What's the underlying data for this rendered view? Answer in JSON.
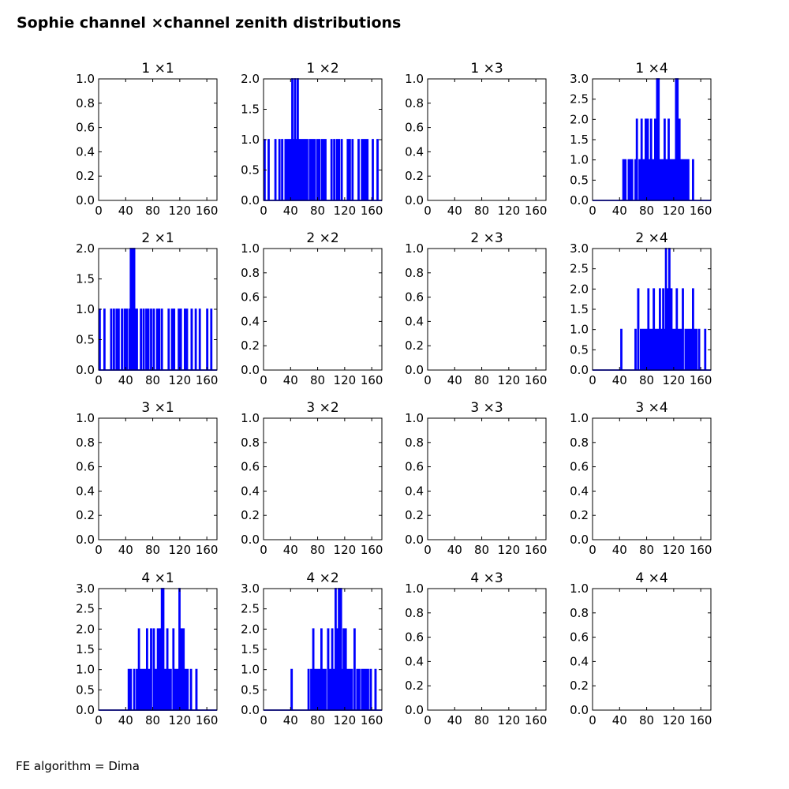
{
  "title": "Sophie channel ×channel zenith distributions",
  "footer": "FE algorithm = Dima",
  "chart_data": [
    {
      "type": "line",
      "title": "1 ×1",
      "x_ticks": [
        0,
        40,
        80,
        120,
        160
      ],
      "xlim": [
        0,
        175
      ],
      "ylim": [
        0,
        1.0
      ],
      "y_ticks": [
        "0.0",
        "0.2",
        "0.4",
        "0.6",
        "0.8",
        "1.0"
      ],
      "counts": []
    },
    {
      "type": "line",
      "title": "1 ×2",
      "x_ticks": [
        0,
        40,
        80,
        120,
        160
      ],
      "xlim": [
        0,
        175
      ],
      "ylim": [
        0,
        2.0
      ],
      "y_ticks": [
        "0.0",
        "0.5",
        "1.0",
        "1.5",
        "2.0"
      ],
      "counts": [
        [
          1,
          1
        ],
        [
          7,
          1
        ],
        [
          17,
          1
        ],
        [
          23,
          1
        ],
        [
          27,
          1
        ],
        [
          32,
          1
        ],
        [
          35,
          1
        ],
        [
          38,
          1
        ],
        [
          40,
          1
        ],
        [
          42,
          2
        ],
        [
          44,
          1
        ],
        [
          46,
          2
        ],
        [
          48,
          1
        ],
        [
          50,
          2
        ],
        [
          52,
          1
        ],
        [
          55,
          1
        ],
        [
          58,
          1
        ],
        [
          61,
          1
        ],
        [
          64,
          1
        ],
        [
          68,
          1
        ],
        [
          70,
          1
        ],
        [
          72,
          1
        ],
        [
          75,
          1
        ],
        [
          79,
          1
        ],
        [
          82,
          1
        ],
        [
          86,
          1
        ],
        [
          88,
          1
        ],
        [
          91,
          1
        ],
        [
          100,
          1
        ],
        [
          104,
          1
        ],
        [
          108,
          1
        ],
        [
          111,
          1
        ],
        [
          115,
          1
        ],
        [
          124,
          1
        ],
        [
          127,
          1
        ],
        [
          131,
          1
        ],
        [
          140,
          1
        ],
        [
          145,
          1
        ],
        [
          148,
          1
        ],
        [
          151,
          1
        ],
        [
          153,
          1
        ],
        [
          161,
          1
        ],
        [
          168,
          1
        ]
      ]
    },
    {
      "type": "line",
      "title": "1 ×3",
      "x_ticks": [
        0,
        40,
        80,
        120,
        160
      ],
      "xlim": [
        0,
        175
      ],
      "ylim": [
        0,
        1.0
      ],
      "y_ticks": [
        "0.0",
        "0.2",
        "0.4",
        "0.6",
        "0.8",
        "1.0"
      ],
      "counts": []
    },
    {
      "type": "line",
      "title": "1 ×4",
      "x_ticks": [
        0,
        40,
        80,
        120,
        160
      ],
      "xlim": [
        0,
        175
      ],
      "ylim": [
        0,
        3.0
      ],
      "y_ticks": [
        "0.0",
        "0.5",
        "1.0",
        "1.5",
        "2.0",
        "2.5",
        "3.0"
      ],
      "counts": [
        [
          45,
          1
        ],
        [
          48,
          1
        ],
        [
          53,
          1
        ],
        [
          55,
          1
        ],
        [
          58,
          1
        ],
        [
          63,
          1
        ],
        [
          65,
          2
        ],
        [
          69,
          1
        ],
        [
          72,
          2
        ],
        [
          75,
          1
        ],
        [
          78,
          2
        ],
        [
          81,
          2
        ],
        [
          83,
          1
        ],
        [
          86,
          2
        ],
        [
          89,
          1
        ],
        [
          92,
          2
        ],
        [
          94,
          1
        ],
        [
          95,
          3
        ],
        [
          97,
          3
        ],
        [
          100,
          1
        ],
        [
          103,
          1
        ],
        [
          106,
          2
        ],
        [
          109,
          1
        ],
        [
          112,
          2
        ],
        [
          114,
          1
        ],
        [
          117,
          1
        ],
        [
          120,
          1
        ],
        [
          123,
          3
        ],
        [
          125,
          3
        ],
        [
          128,
          2
        ],
        [
          131,
          1
        ],
        [
          134,
          1
        ],
        [
          136,
          1
        ],
        [
          139,
          1
        ],
        [
          141,
          1
        ],
        [
          148,
          1
        ]
      ]
    },
    {
      "type": "line",
      "title": "2 ×1",
      "x_ticks": [
        0,
        40,
        80,
        120,
        160
      ],
      "xlim": [
        0,
        175
      ],
      "ylim": [
        0,
        2.0
      ],
      "y_ticks": [
        "0.0",
        "0.5",
        "1.0",
        "1.5",
        "2.0"
      ],
      "counts": [
        [
          1,
          1
        ],
        [
          8,
          1
        ],
        [
          18,
          1
        ],
        [
          22,
          1
        ],
        [
          26,
          1
        ],
        [
          29,
          1
        ],
        [
          34,
          1
        ],
        [
          38,
          1
        ],
        [
          41,
          1
        ],
        [
          45,
          1
        ],
        [
          47,
          2
        ],
        [
          49,
          1
        ],
        [
          50,
          2
        ],
        [
          52,
          2
        ],
        [
          54,
          1
        ],
        [
          56,
          1
        ],
        [
          62,
          1
        ],
        [
          66,
          1
        ],
        [
          70,
          1
        ],
        [
          73,
          1
        ],
        [
          77,
          1
        ],
        [
          81,
          1
        ],
        [
          86,
          1
        ],
        [
          89,
          1
        ],
        [
          93,
          1
        ],
        [
          103,
          1
        ],
        [
          108,
          1
        ],
        [
          111,
          1
        ],
        [
          118,
          1
        ],
        [
          121,
          1
        ],
        [
          127,
          1
        ],
        [
          130,
          1
        ],
        [
          137,
          1
        ],
        [
          143,
          1
        ],
        [
          149,
          1
        ],
        [
          160,
          1
        ],
        [
          166,
          1
        ]
      ]
    },
    {
      "type": "line",
      "title": "2 ×2",
      "x_ticks": [
        0,
        40,
        80,
        120,
        160
      ],
      "xlim": [
        0,
        175
      ],
      "ylim": [
        0,
        1.0
      ],
      "y_ticks": [
        "0.0",
        "0.2",
        "0.4",
        "0.6",
        "0.8",
        "1.0"
      ],
      "counts": []
    },
    {
      "type": "line",
      "title": "2 ×3",
      "x_ticks": [
        0,
        40,
        80,
        120,
        160
      ],
      "xlim": [
        0,
        175
      ],
      "ylim": [
        0,
        1.0
      ],
      "y_ticks": [
        "0.0",
        "0.2",
        "0.4",
        "0.6",
        "0.8",
        "1.0"
      ],
      "counts": []
    },
    {
      "type": "line",
      "title": "2 ×4",
      "x_ticks": [
        0,
        40,
        80,
        120,
        160
      ],
      "xlim": [
        0,
        175
      ],
      "ylim": [
        0,
        3.0
      ],
      "y_ticks": [
        "0.0",
        "0.5",
        "1.0",
        "1.5",
        "2.0",
        "2.5",
        "3.0"
      ],
      "counts": [
        [
          42,
          1
        ],
        [
          63,
          1
        ],
        [
          67,
          2
        ],
        [
          71,
          1
        ],
        [
          74,
          1
        ],
        [
          76,
          1
        ],
        [
          79,
          1
        ],
        [
          82,
          2
        ],
        [
          85,
          1
        ],
        [
          87,
          1
        ],
        [
          90,
          2
        ],
        [
          92,
          1
        ],
        [
          94,
          1
        ],
        [
          96,
          1
        ],
        [
          99,
          2
        ],
        [
          101,
          1
        ],
        [
          104,
          2
        ],
        [
          106,
          1
        ],
        [
          108,
          3
        ],
        [
          111,
          2
        ],
        [
          113,
          3
        ],
        [
          116,
          2
        ],
        [
          118,
          1
        ],
        [
          121,
          1
        ],
        [
          124,
          2
        ],
        [
          127,
          1
        ],
        [
          130,
          1
        ],
        [
          133,
          2
        ],
        [
          137,
          1
        ],
        [
          140,
          1
        ],
        [
          143,
          1
        ],
        [
          146,
          1
        ],
        [
          148,
          2
        ],
        [
          151,
          1
        ],
        [
          153,
          1
        ],
        [
          157,
          1
        ],
        [
          166,
          1
        ]
      ]
    },
    {
      "type": "line",
      "title": "3 ×1",
      "x_ticks": [
        0,
        40,
        80,
        120,
        160
      ],
      "xlim": [
        0,
        175
      ],
      "ylim": [
        0,
        1.0
      ],
      "y_ticks": [
        "0.0",
        "0.2",
        "0.4",
        "0.6",
        "0.8",
        "1.0"
      ],
      "counts": []
    },
    {
      "type": "line",
      "title": "3 ×2",
      "x_ticks": [
        0,
        40,
        80,
        120,
        160
      ],
      "xlim": [
        0,
        175
      ],
      "ylim": [
        0,
        1.0
      ],
      "y_ticks": [
        "0.0",
        "0.2",
        "0.4",
        "0.6",
        "0.8",
        "1.0"
      ],
      "counts": []
    },
    {
      "type": "line",
      "title": "3 ×3",
      "x_ticks": [
        0,
        40,
        80,
        120,
        160
      ],
      "xlim": [
        0,
        175
      ],
      "ylim": [
        0,
        1.0
      ],
      "y_ticks": [
        "0.0",
        "0.2",
        "0.4",
        "0.6",
        "0.8",
        "1.0"
      ],
      "counts": []
    },
    {
      "type": "line",
      "title": "3 ×4",
      "x_ticks": [
        0,
        40,
        80,
        120,
        160
      ],
      "xlim": [
        0,
        175
      ],
      "ylim": [
        0,
        1.0
      ],
      "y_ticks": [
        "0.0",
        "0.2",
        "0.4",
        "0.6",
        "0.8",
        "1.0"
      ],
      "counts": []
    },
    {
      "type": "line",
      "title": "4 ×1",
      "x_ticks": [
        0,
        40,
        80,
        120,
        160
      ],
      "xlim": [
        0,
        175
      ],
      "ylim": [
        0,
        3.0
      ],
      "y_ticks": [
        "0.0",
        "0.5",
        "1.0",
        "1.5",
        "2.0",
        "2.5",
        "3.0"
      ],
      "counts": [
        [
          44,
          1
        ],
        [
          47,
          1
        ],
        [
          52,
          1
        ],
        [
          56,
          1
        ],
        [
          59,
          2
        ],
        [
          62,
          1
        ],
        [
          65,
          1
        ],
        [
          68,
          1
        ],
        [
          71,
          2
        ],
        [
          74,
          1
        ],
        [
          77,
          2
        ],
        [
          81,
          2
        ],
        [
          84,
          1
        ],
        [
          87,
          2
        ],
        [
          90,
          2
        ],
        [
          93,
          3
        ],
        [
          95,
          3
        ],
        [
          98,
          1
        ],
        [
          101,
          2
        ],
        [
          104,
          1
        ],
        [
          106,
          1
        ],
        [
          110,
          2
        ],
        [
          113,
          1
        ],
        [
          116,
          1
        ],
        [
          119,
          3
        ],
        [
          121,
          2
        ],
        [
          123,
          2
        ],
        [
          125,
          2
        ],
        [
          128,
          1
        ],
        [
          131,
          1
        ],
        [
          136,
          1
        ],
        [
          144,
          1
        ]
      ]
    },
    {
      "type": "line",
      "title": "4 ×2",
      "x_ticks": [
        0,
        40,
        80,
        120,
        160
      ],
      "xlim": [
        0,
        175
      ],
      "ylim": [
        0,
        3.0
      ],
      "y_ticks": [
        "0.0",
        "0.5",
        "1.0",
        "1.5",
        "2.0",
        "2.5",
        "3.0"
      ],
      "counts": [
        [
          41,
          1
        ],
        [
          66,
          1
        ],
        [
          70,
          1
        ],
        [
          73,
          2
        ],
        [
          76,
          1
        ],
        [
          79,
          1
        ],
        [
          82,
          1
        ],
        [
          85,
          2
        ],
        [
          88,
          1
        ],
        [
          91,
          1
        ],
        [
          95,
          2
        ],
        [
          98,
          1
        ],
        [
          101,
          2
        ],
        [
          104,
          1
        ],
        [
          106,
          3
        ],
        [
          109,
          2
        ],
        [
          111,
          3
        ],
        [
          114,
          3
        ],
        [
          116,
          1
        ],
        [
          118,
          2
        ],
        [
          121,
          2
        ],
        [
          124,
          1
        ],
        [
          127,
          1
        ],
        [
          130,
          1
        ],
        [
          134,
          2
        ],
        [
          138,
          1
        ],
        [
          141,
          1
        ],
        [
          145,
          1
        ],
        [
          148,
          1
        ],
        [
          151,
          1
        ],
        [
          154,
          1
        ],
        [
          158,
          1
        ],
        [
          165,
          1
        ]
      ]
    },
    {
      "type": "line",
      "title": "4 ×3",
      "x_ticks": [
        0,
        40,
        80,
        120,
        160
      ],
      "xlim": [
        0,
        175
      ],
      "ylim": [
        0,
        1.0
      ],
      "y_ticks": [
        "0.0",
        "0.2",
        "0.4",
        "0.6",
        "0.8",
        "1.0"
      ],
      "counts": []
    },
    {
      "type": "line",
      "title": "4 ×4",
      "x_ticks": [
        0,
        40,
        80,
        120,
        160
      ],
      "xlim": [
        0,
        175
      ],
      "ylim": [
        0,
        1.0
      ],
      "y_ticks": [
        "0.0",
        "0.2",
        "0.4",
        "0.6",
        "0.8",
        "1.0"
      ],
      "counts": []
    }
  ],
  "line_color": "#0000ff"
}
